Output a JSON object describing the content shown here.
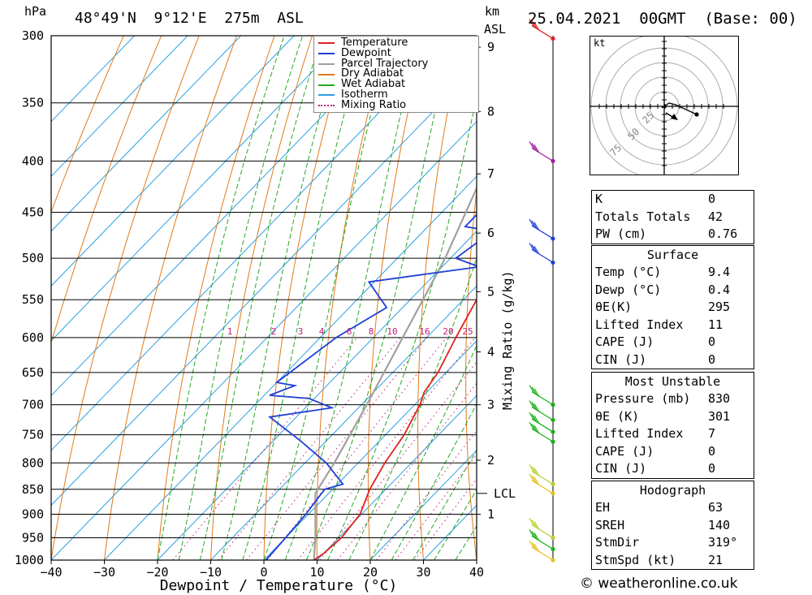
{
  "header": {
    "location": "48°49'N  9°12'E  275m  ASL",
    "datetime": "25.04.2021  00GMT  (Base: 00)",
    "unit_hpa": "hPa",
    "unit_km": "km",
    "unit_asl": "ASL"
  },
  "colors": {
    "temperature": "#e02020",
    "dewpoint": "#1f3fd8",
    "parcel": "#a0a0a0",
    "dry": "#e07a1a",
    "wet": "#27a827",
    "iso": "#2aa0e0",
    "mix": "#c0207a"
  },
  "chart_data": {
    "type": "skew-t",
    "xlabel": "Dewpoint / Temperature (°C)",
    "x_ticks": [
      -40,
      -30,
      -20,
      -10,
      0,
      10,
      20,
      30,
      40
    ],
    "pressure_levels": [
      300,
      350,
      400,
      450,
      500,
      550,
      600,
      650,
      700,
      750,
      800,
      850,
      900,
      950,
      1000
    ],
    "km_ticks": [
      {
        "km": "9",
        "p": 308
      },
      {
        "km": "8",
        "p": 357
      },
      {
        "km": "7",
        "p": 412
      },
      {
        "km": "6",
        "p": 472
      },
      {
        "km": "5",
        "p": 540
      },
      {
        "km": "4",
        "p": 620
      },
      {
        "km": "3",
        "p": 700
      },
      {
        "km": "2",
        "p": 795
      },
      {
        "km": "1",
        "p": 900
      }
    ],
    "lcl": {
      "label": "LCL",
      "p": 858
    },
    "mixing_ratio_label": "Mixing Ratio (g/kg)",
    "mixing_ratios": [
      "1",
      "2",
      "3",
      "4",
      "6",
      "8",
      "10",
      "16",
      "20",
      "25"
    ],
    "legend": [
      "Temperature",
      "Dewpoint",
      "Parcel Trajectory",
      "Dry Adiabat",
      "Wet Adiabat",
      "Isotherm",
      "Mixing Ratio"
    ],
    "series": [
      {
        "name": "Temperature",
        "points": [
          [
            1000,
            9.4
          ],
          [
            985,
            10
          ],
          [
            950,
            10.5
          ],
          [
            900,
            9.7
          ],
          [
            850,
            7.0
          ],
          [
            800,
            5.0
          ],
          [
            750,
            3.5
          ],
          [
            700,
            1.0
          ],
          [
            680,
            -0.5
          ],
          [
            650,
            -1.5
          ],
          [
            600,
            -4.5
          ],
          [
            550,
            -7.5
          ],
          [
            520,
            -8.5
          ],
          [
            500,
            -10.0
          ],
          [
            450,
            -14.5
          ],
          [
            420,
            -17.5
          ],
          [
            400,
            -20.0
          ],
          [
            380,
            -22.5
          ],
          [
            350,
            -27.0
          ],
          [
            320,
            -32.0
          ],
          [
            300,
            -36.0
          ]
        ]
      },
      {
        "name": "Dewpoint",
        "points": [
          [
            1000,
            0.4
          ],
          [
            950,
            0
          ],
          [
            900,
            -0.5
          ],
          [
            850,
            -1.5
          ],
          [
            840,
            1.0
          ],
          [
            800,
            -6
          ],
          [
            760,
            -15
          ],
          [
            720,
            -25
          ],
          [
            705,
            -15
          ],
          [
            690,
            -21
          ],
          [
            685,
            -29
          ],
          [
            670,
            -26
          ],
          [
            665,
            -30
          ],
          [
            600,
            -27
          ],
          [
            560,
            -23
          ],
          [
            528,
            -31
          ],
          [
            510,
            -13
          ],
          [
            500,
            -19
          ],
          [
            470,
            -17
          ],
          [
            465,
            -23
          ],
          [
            420,
            -23
          ],
          [
            380,
            -31
          ],
          [
            355,
            -33
          ],
          [
            340,
            -34
          ],
          [
            328,
            -32
          ],
          [
            310,
            -32
          ],
          [
            305,
            -30
          ],
          [
            300,
            -36
          ]
        ]
      },
      {
        "name": "Parcel Trajectory",
        "points": [
          [
            1000,
            9.4
          ],
          [
            950,
            5.6
          ],
          [
            900,
            1.3
          ],
          [
            858,
            -2.5
          ],
          [
            800,
            -4.5
          ],
          [
            700,
            -9.0
          ],
          [
            600,
            -14.5
          ],
          [
            500,
            -21.0
          ],
          [
            400,
            -30.5
          ],
          [
            300,
            -44.5
          ]
        ]
      }
    ]
  },
  "hodograph": {
    "unit": "kt",
    "ring_labels": [
      "25",
      "50",
      "75"
    ]
  },
  "indices": [
    {
      "label": "K",
      "value": "0"
    },
    {
      "label": "Totals Totals",
      "value": "42"
    },
    {
      "label": "PW (cm)",
      "value": "0.76"
    }
  ],
  "surface": {
    "title": "Surface",
    "rows": [
      {
        "label": "Temp (°C)",
        "value": "9.4"
      },
      {
        "label": "Dewp (°C)",
        "value": "0.4"
      },
      {
        "label": "θE(K)",
        "value": "295"
      },
      {
        "label": "Lifted Index",
        "value": "11"
      },
      {
        "label": "CAPE (J)",
        "value": "0"
      },
      {
        "label": "CIN (J)",
        "value": "0"
      }
    ]
  },
  "most_unstable": {
    "title": "Most Unstable",
    "rows": [
      {
        "label": "Pressure (mb)",
        "value": "830"
      },
      {
        "label": "θE (K)",
        "value": "301"
      },
      {
        "label": "Lifted Index",
        "value": "7"
      },
      {
        "label": "CAPE (J)",
        "value": "0"
      },
      {
        "label": "CIN (J)",
        "value": "0"
      }
    ]
  },
  "hodograph_stats": {
    "title": "Hodograph",
    "rows": [
      {
        "label": "EH",
        "value": "63"
      },
      {
        "label": "SREH",
        "value": "140"
      },
      {
        "label": "StmDir",
        "value": "319°"
      },
      {
        "label": "StmSpd (kt)",
        "value": "21"
      }
    ]
  },
  "footer": "© weatheronline.co.uk"
}
